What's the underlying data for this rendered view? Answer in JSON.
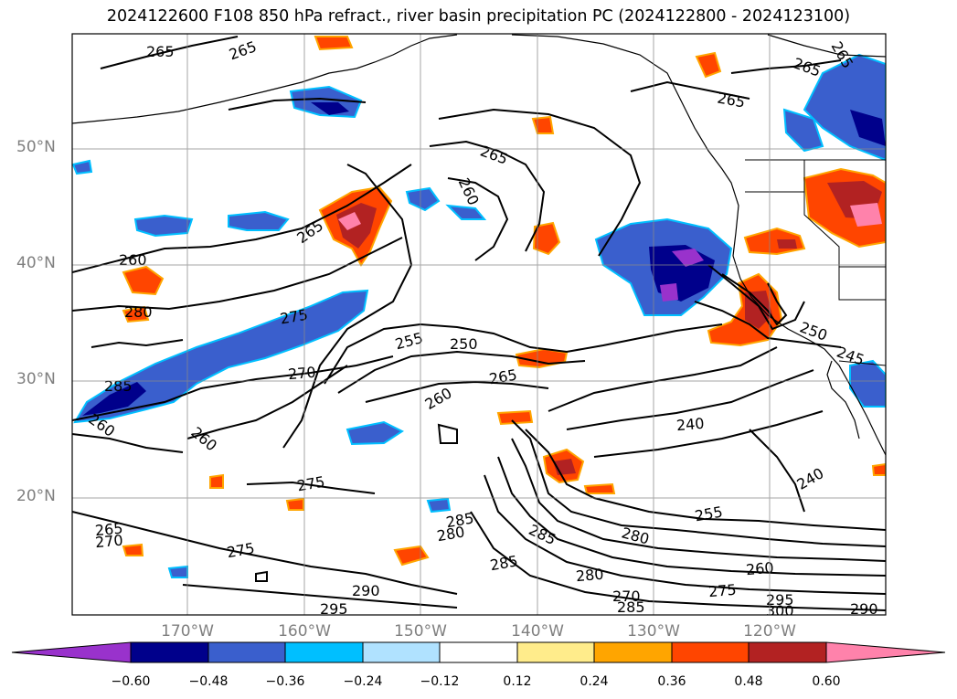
{
  "title": "2024122600 F108 850 hPa refract., river basin precipitation PC (2024122800 - 2024123100)",
  "lat_labels": [
    "50°N",
    "40°N",
    "30°N",
    "20°N"
  ],
  "lon_labels": [
    "170°W",
    "160°W",
    "150°W",
    "140°W",
    "130°W",
    "120°W"
  ],
  "colorbar": {
    "ticks": [
      "−0.60",
      "−0.48",
      "−0.36",
      "−0.24",
      "−0.12",
      "0.12",
      "0.24",
      "0.36",
      "0.48",
      "0.60"
    ],
    "colors": [
      "#9932cc",
      "#00008b",
      "#3a5fcd",
      "#00bfff",
      "#b0e2ff",
      "#ffffff",
      "#ffec8b",
      "#ffa500",
      "#ff4500",
      "#b22222",
      "#ff82ab"
    ]
  },
  "contour_labels": [
    "265",
    "265",
    "265",
    "265",
    "265",
    "265",
    "260",
    "265",
    "260",
    "280",
    "275",
    "255",
    "250",
    "265",
    "270",
    "260",
    "285",
    "260",
    "260",
    "240",
    "250",
    "245",
    "275",
    "240",
    "265",
    "270",
    "285",
    "280",
    "285",
    "255",
    "275",
    "285",
    "290",
    "280",
    "270",
    "260",
    "280",
    "285",
    "275",
    "295",
    "295",
    "300",
    "290"
  ]
}
